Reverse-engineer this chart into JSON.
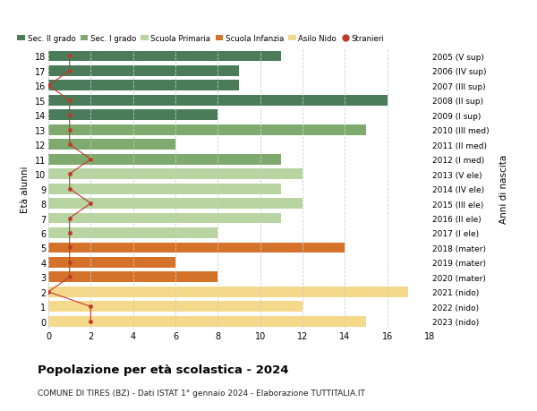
{
  "ages": [
    18,
    17,
    16,
    15,
    14,
    13,
    12,
    11,
    10,
    9,
    8,
    7,
    6,
    5,
    4,
    3,
    2,
    1,
    0
  ],
  "years": [
    "2005 (V sup)",
    "2006 (IV sup)",
    "2007 (III sup)",
    "2008 (II sup)",
    "2009 (I sup)",
    "2010 (III med)",
    "2011 (II med)",
    "2012 (I med)",
    "2013 (V ele)",
    "2014 (IV ele)",
    "2015 (III ele)",
    "2016 (II ele)",
    "2017 (I ele)",
    "2018 (mater)",
    "2019 (mater)",
    "2020 (mater)",
    "2021 (nido)",
    "2022 (nido)",
    "2023 (nido)"
  ],
  "bar_values": [
    11,
    9,
    9,
    16,
    8,
    15,
    6,
    11,
    12,
    11,
    12,
    11,
    8,
    14,
    6,
    8,
    17,
    12,
    15
  ],
  "stranieri_values": [
    1,
    1,
    0,
    1,
    1,
    1,
    1,
    2,
    1,
    1,
    2,
    1,
    1,
    1,
    1,
    1,
    0,
    2,
    2
  ],
  "bar_colors": [
    "#4a7c59",
    "#4a7c59",
    "#4a7c59",
    "#4a7c59",
    "#4a7c59",
    "#7faa6e",
    "#7faa6e",
    "#7faa6e",
    "#b8d4a0",
    "#b8d4a0",
    "#b8d4a0",
    "#b8d4a0",
    "#b8d4a0",
    "#d4722a",
    "#d4722a",
    "#d4722a",
    "#f5d98b",
    "#f5d98b",
    "#f5d98b"
  ],
  "legend_colors": [
    "#4a7c59",
    "#7faa6e",
    "#b8d4a0",
    "#d4722a",
    "#f5d98b",
    "#c0392b"
  ],
  "legend_labels": [
    "Sec. II grado",
    "Sec. I grado",
    "Scuola Primaria",
    "Scuola Infanzia",
    "Asilo Nido",
    "Stranieri"
  ],
  "stranieri_color": "#c0392b",
  "title": "Popolazione per età scolastica - 2024",
  "subtitle": "COMUNE DI TIRES (BZ) - Dati ISTAT 1° gennaio 2024 - Elaborazione TUTTITALIA.IT",
  "ylabel_left": "Età alunni",
  "ylabel_right": "Anni di nascita",
  "xlim": [
    0,
    18
  ],
  "grid_color": "#cccccc",
  "bg_color": "#ffffff"
}
